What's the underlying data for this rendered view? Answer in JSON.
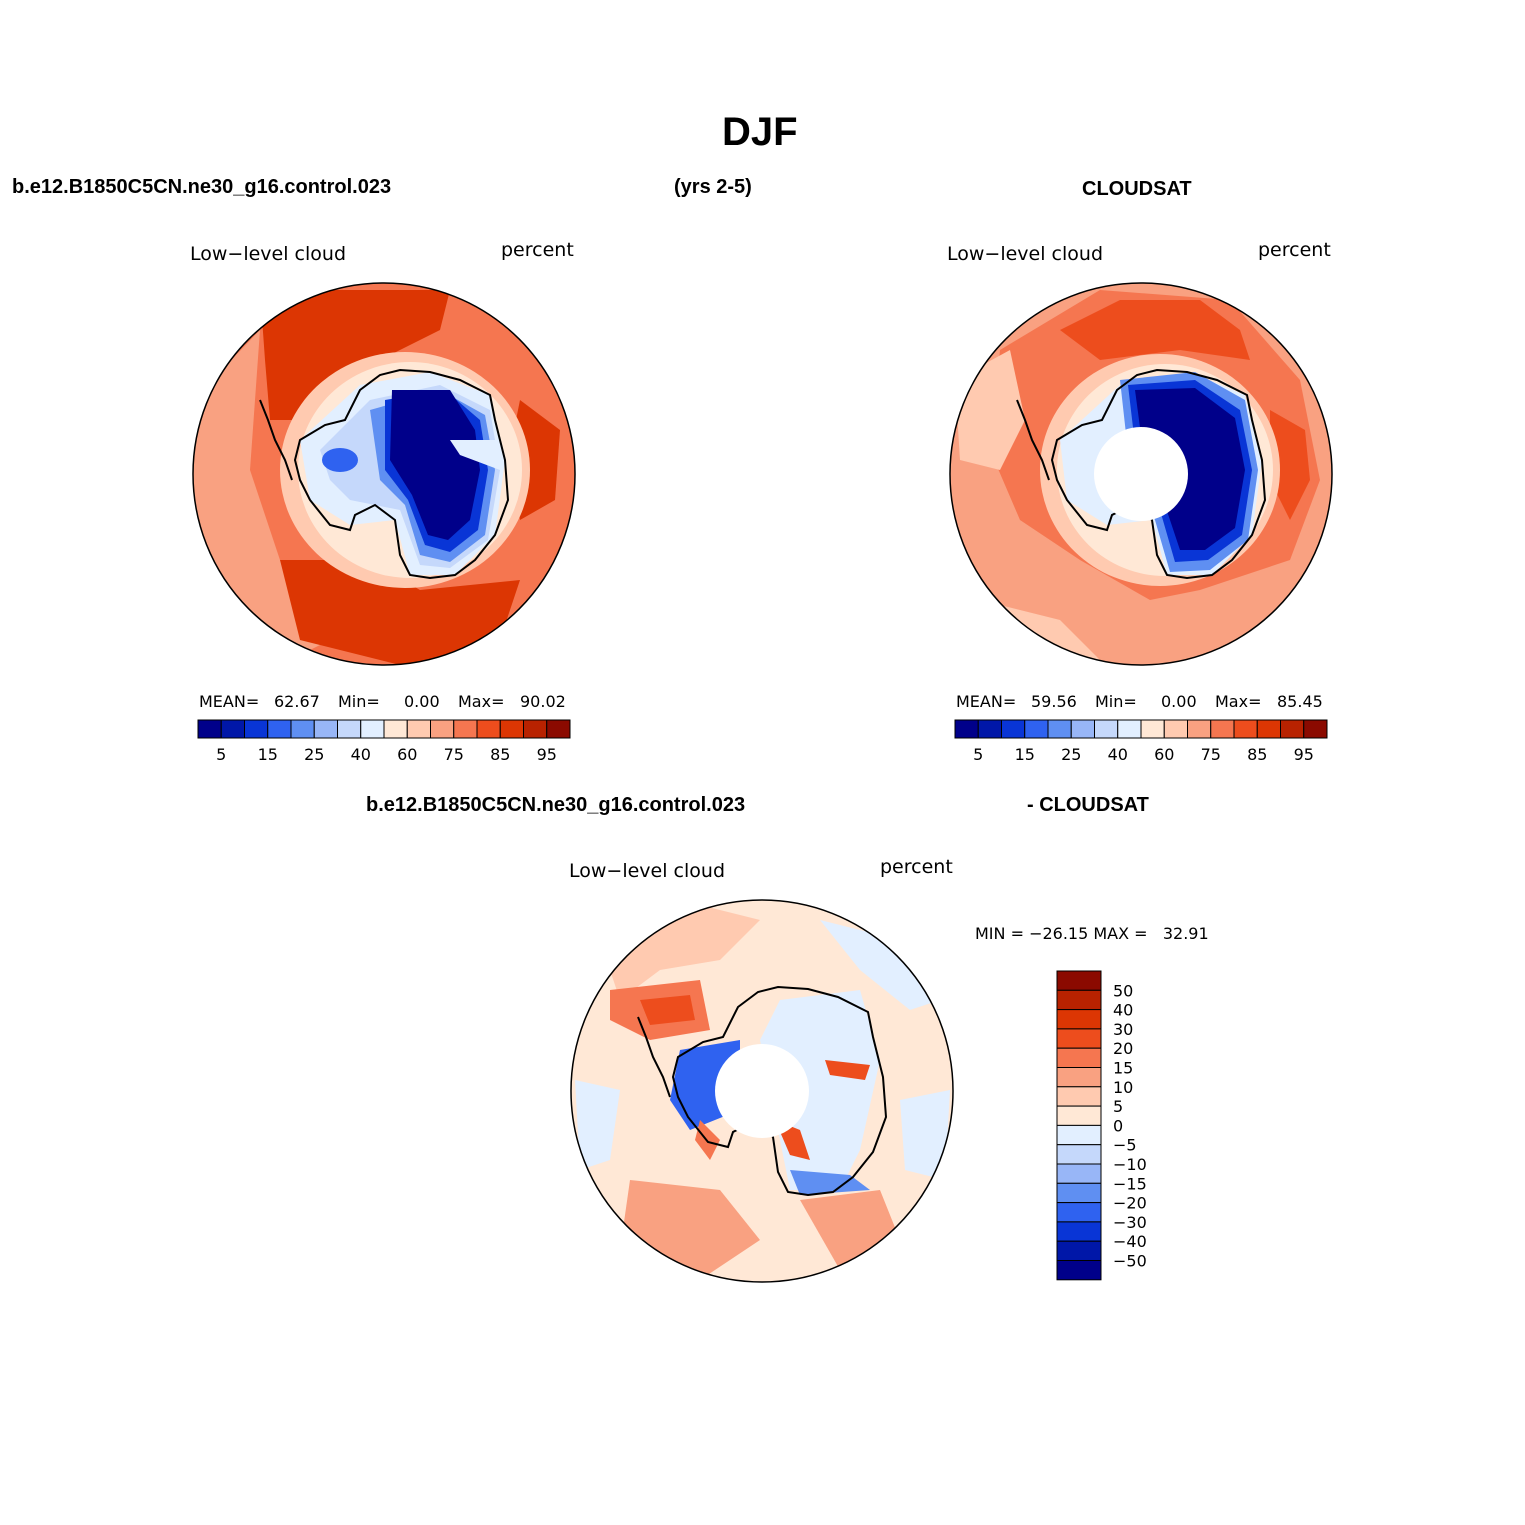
{
  "title": "DJF",
  "top_left_case": "b.e12.B1850C5CN.ne30_g16.control.023",
  "years": "(yrs 2-5)",
  "top_right_case": "CLOUDSAT",
  "diff_case_left": "b.e12.B1850C5CN.ne30_g16.control.023",
  "diff_case_right": "- CLOUDSAT",
  "panels": [
    {
      "name": "model",
      "variable": "Low−level cloud",
      "units": "percent",
      "mean_label": "MEAN=",
      "mean": "62.67",
      "min_label": "Min=",
      "min": "0.00",
      "max_label": "Max=",
      "max": "90.02"
    },
    {
      "name": "cloudsat",
      "variable": "Low−level cloud",
      "units": "percent",
      "mean_label": "MEAN=",
      "mean": "59.56",
      "min_label": "Min=",
      "min": "0.00",
      "max_label": "Max=",
      "max": "85.45"
    },
    {
      "name": "difference",
      "variable": "Low−level cloud",
      "units": "percent",
      "minmax": "MIN = −26.15 MAX =   32.91"
    }
  ],
  "colorbar_abs": {
    "colors": [
      "#00008a",
      "#0017a8",
      "#0935d6",
      "#2f62f0",
      "#5f8ff2",
      "#98b6f7",
      "#c5d8fb",
      "#e2efff",
      "#ffe8d6",
      "#ffcab0",
      "#f9a181",
      "#f57650",
      "#ed4d1d",
      "#dc3603",
      "#b82200",
      "#8b0a00"
    ],
    "labels": [
      "5",
      "15",
      "25",
      "40",
      "60",
      "75",
      "85",
      "95"
    ]
  },
  "colorbar_diff": {
    "colors": [
      "#8b0a00",
      "#b82200",
      "#dc3603",
      "#ed4d1d",
      "#f57650",
      "#f9a181",
      "#ffcab0",
      "#ffe8d6",
      "#e2efff",
      "#c5d8fb",
      "#98b6f7",
      "#5f8ff2",
      "#2f62f0",
      "#0935d6",
      "#0017a8",
      "#00008a"
    ],
    "labels": [
      "50",
      "40",
      "30",
      "20",
      "15",
      "10",
      "5",
      "0",
      "−5",
      "−10",
      "−15",
      "−20",
      "−30",
      "−40",
      "−50"
    ]
  }
}
